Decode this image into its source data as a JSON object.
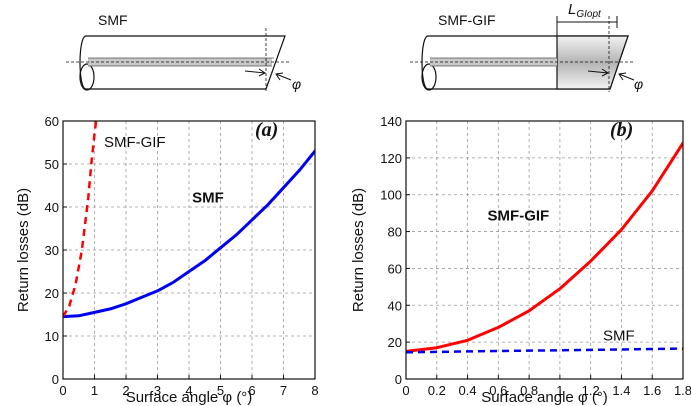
{
  "diagrams": [
    {
      "label": "SMF",
      "angle_symbol": "φ"
    },
    {
      "label": "SMF-GIF",
      "angle_symbol": "φ",
      "segment_label_base": "L",
      "segment_label_sub": "GIopt"
    }
  ],
  "chart_data": [
    {
      "type": "line",
      "panel_label": "(a)",
      "xlabel": "Surface angle φ (°)",
      "ylabel": "Return losses (dB)",
      "xlim": [
        0,
        8
      ],
      "ylim": [
        0,
        60
      ],
      "xticks": [
        0,
        1,
        2,
        3,
        4,
        5,
        6,
        7,
        8
      ],
      "yticks": [
        0,
        10,
        20,
        30,
        40,
        50,
        60
      ],
      "grid": true,
      "series": [
        {
          "name": "SMF",
          "color": "#0000ee",
          "style": "solid",
          "label_bold": true,
          "label_at": [
            4.1,
            41
          ],
          "x": [
            0,
            0.5,
            1,
            1.5,
            2,
            2.5,
            3,
            3.5,
            4,
            4.5,
            5,
            5.5,
            6,
            6.5,
            7,
            7.5,
            8
          ],
          "y": [
            14.5,
            14.7,
            15.5,
            16.3,
            17.5,
            19,
            20.5,
            22.5,
            25,
            27.5,
            30.5,
            33.5,
            37,
            40.5,
            44.5,
            48.5,
            53
          ]
        },
        {
          "name": "SMF-GIF",
          "color": "#ff0000",
          "style": "dashed",
          "label_bold": false,
          "label_at": [
            1.3,
            54
          ],
          "x": [
            0,
            0.2,
            0.4,
            0.6,
            0.8,
            0.9,
            1.0,
            1.05
          ],
          "y": [
            14.5,
            17,
            22,
            30,
            42,
            50,
            57,
            60
          ]
        }
      ]
    },
    {
      "type": "line",
      "panel_label": "(b)",
      "xlabel": "Surface angle φ (°)",
      "ylabel": "Return losses (dB)",
      "xlim": [
        0,
        1.8
      ],
      "ylim": [
        0,
        140
      ],
      "xticks": [
        0,
        0.2,
        0.4,
        0.6,
        0.8,
        1,
        1.2,
        1.4,
        1.6,
        1.8
      ],
      "yticks": [
        0,
        20,
        40,
        60,
        80,
        100,
        120,
        140
      ],
      "grid": true,
      "series": [
        {
          "name": "SMF-GIF",
          "color": "#ff0000",
          "style": "solid",
          "label_bold": true,
          "label_at": [
            0.53,
            86
          ],
          "x": [
            0,
            0.2,
            0.4,
            0.6,
            0.8,
            1.0,
            1.2,
            1.4,
            1.6,
            1.8
          ],
          "y": [
            15,
            17,
            21,
            28,
            37,
            49,
            64,
            81,
            102,
            128
          ]
        },
        {
          "name": "SMF",
          "color": "#0000ee",
          "style": "dashed",
          "label_bold": false,
          "label_at": [
            1.28,
            21
          ],
          "x": [
            0,
            0.2,
            0.4,
            0.6,
            0.8,
            1.0,
            1.2,
            1.4,
            1.6,
            1.8
          ],
          "y": [
            14.5,
            14.7,
            15,
            15.2,
            15.4,
            15.6,
            15.8,
            16,
            16.3,
            16.5
          ]
        }
      ]
    }
  ]
}
